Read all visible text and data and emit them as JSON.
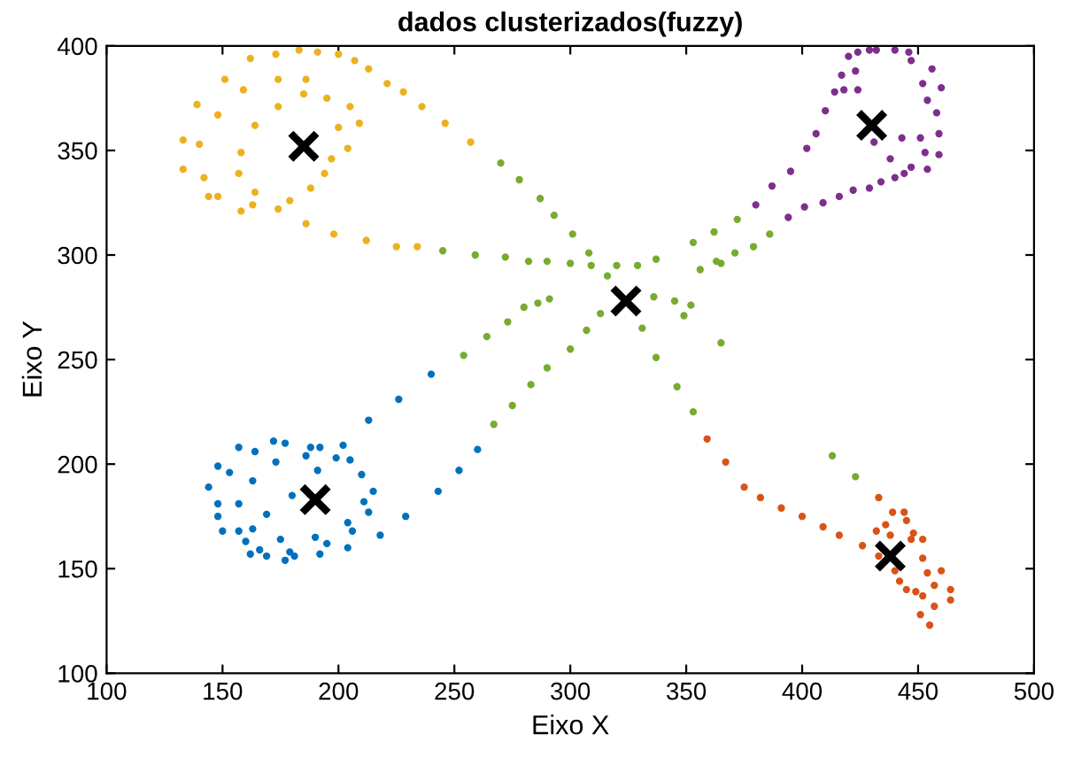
{
  "chart_data": {
    "type": "scatter",
    "title": "dados clusterizados(fuzzy)",
    "xlabel": "Eixo X",
    "ylabel": "Eixo Y",
    "xlim": [
      100,
      500
    ],
    "ylim": [
      100,
      400
    ],
    "xticks": [
      100,
      150,
      200,
      250,
      300,
      350,
      400,
      450,
      500
    ],
    "yticks": [
      100,
      150,
      200,
      250,
      300,
      350,
      400
    ],
    "grid": false,
    "legend": false,
    "marker": "circle",
    "series": [
      {
        "color": "#edb120",
        "x": [
          183,
          191,
          173,
          162,
          200,
          207,
          213,
          221,
          228,
          236,
          246,
          257,
          151,
          159,
          174,
          186,
          185,
          195,
          205,
          209,
          174,
          164,
          200,
          139,
          148,
          133,
          140,
          158,
          204,
          197,
          194,
          133,
          142,
          157,
          188,
          164,
          179,
          144,
          148,
          163,
          158,
          174,
          186,
          198,
          212,
          225,
          234
        ],
        "values": [
          398,
          397,
          396,
          394,
          396,
          393,
          389,
          382,
          378,
          371,
          363,
          354,
          384,
          379,
          384,
          384,
          377,
          375,
          371,
          363,
          371,
          362,
          361,
          372,
          367,
          355,
          353,
          349,
          351,
          346,
          339,
          341,
          337,
          339,
          332,
          330,
          326,
          328,
          328,
          324,
          321,
          322,
          315,
          310,
          307,
          304,
          304
        ]
      },
      {
        "color": "#77ac30",
        "x": [
          270,
          278,
          287,
          293,
          245,
          259,
          272,
          282,
          290,
          300,
          309,
          320,
          329,
          337,
          301,
          308,
          316,
          371,
          356,
          365,
          379,
          291,
          286,
          280,
          273,
          264,
          254,
          313,
          307,
          300,
          290,
          283,
          275,
          267,
          336,
          345,
          352,
          349,
          331,
          365,
          337,
          346,
          353,
          353,
          362,
          372,
          363,
          386,
          413,
          423
        ],
        "values": [
          344,
          336,
          327,
          319,
          302,
          300,
          299,
          297,
          297,
          296,
          295,
          295,
          295,
          298,
          310,
          301,
          290,
          301,
          293,
          296,
          304,
          279,
          277,
          275,
          268,
          261,
          252,
          272,
          264,
          255,
          246,
          238,
          228,
          219,
          280,
          278,
          276,
          271,
          265,
          258,
          251,
          237,
          225,
          306,
          311,
          317,
          297,
          310,
          204,
          194
        ]
      },
      {
        "color": "#7e2f8e",
        "x": [
          380,
          387,
          395,
          402,
          406,
          410,
          414,
          418,
          424,
          417,
          423,
          420,
          424,
          429,
          432,
          440,
          446,
          447,
          456,
          452,
          460,
          454,
          458,
          459,
          451,
          443,
          453,
          459,
          454,
          447,
          438,
          431,
          444,
          440,
          434,
          429,
          422,
          416,
          409,
          401,
          394
        ],
        "values": [
          324,
          333,
          340,
          351,
          358,
          369,
          378,
          379,
          379,
          386,
          388,
          395,
          397,
          398,
          398,
          398,
          397,
          393,
          389,
          382,
          380,
          374,
          368,
          358,
          356,
          356,
          349,
          348,
          341,
          342,
          346,
          354,
          339,
          337,
          335,
          332,
          331,
          328,
          325,
          323,
          318
        ]
      },
      {
        "color": "#0072bd",
        "x": [
          240,
          226,
          213,
          260,
          252,
          243,
          229,
          218,
          172,
          177,
          157,
          164,
          188,
          192,
          202,
          186,
          199,
          205,
          173,
          148,
          153,
          191,
          210,
          163,
          144,
          215,
          211,
          148,
          157,
          180,
          213,
          148,
          169,
          204,
          150,
          157,
          163,
          206,
          160,
          175,
          190,
          195,
          166,
          179,
          204,
          162,
          169,
          181,
          192,
          177
        ],
        "values": [
          243,
          231,
          221,
          207,
          197,
          187,
          175,
          166,
          211,
          210,
          208,
          206,
          208,
          208,
          209,
          204,
          203,
          202,
          201,
          199,
          196,
          197,
          195,
          192,
          189,
          187,
          182,
          181,
          181,
          185,
          177,
          175,
          176,
          172,
          168,
          168,
          169,
          168,
          163,
          164,
          165,
          162,
          159,
          158,
          160,
          157,
          156,
          156,
          157,
          154
        ]
      },
      {
        "color": "#d95319",
        "x": [
          359,
          367,
          375,
          382,
          391,
          400,
          409,
          416,
          426,
          433,
          439,
          444,
          445,
          436,
          432,
          438,
          447,
          433,
          440,
          452,
          445,
          442,
          454,
          460,
          457,
          464,
          452,
          464,
          457,
          451,
          455,
          449,
          452,
          448
        ],
        "values": [
          212,
          201,
          189,
          184,
          179,
          175,
          170,
          166,
          161,
          184,
          177,
          177,
          173,
          171,
          168,
          166,
          164,
          156,
          149,
          155,
          140,
          144,
          148,
          149,
          142,
          140,
          137,
          135,
          132,
          128,
          123,
          139,
          164,
          167
        ]
      },
      {
        "color": "#000000",
        "marker": "cross",
        "x": [
          185,
          430,
          324,
          190,
          438
        ],
        "values": [
          352,
          362,
          278,
          183,
          156
        ]
      }
    ]
  }
}
